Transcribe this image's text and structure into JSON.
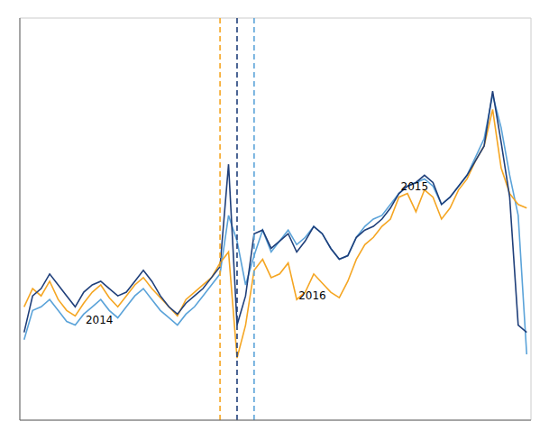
{
  "chart_data": {
    "type": "line",
    "x": [
      0,
      1,
      2,
      3,
      4,
      5,
      6,
      7,
      8,
      9,
      10,
      11,
      12,
      13,
      14,
      15,
      16,
      17,
      18,
      19,
      20,
      21,
      22,
      23,
      24,
      25,
      26,
      27,
      28,
      29,
      30,
      31,
      32,
      33,
      34,
      35,
      36,
      37,
      38,
      39,
      40,
      41,
      42,
      43,
      44,
      45,
      46,
      47,
      48,
      49,
      50,
      51,
      52,
      53,
      54,
      55,
      56,
      57,
      58,
      59
    ],
    "series": [
      {
        "color": "#1f3f7a",
        "values": [
          48,
          68,
          72,
          80,
          74,
          68,
          62,
          70,
          74,
          76,
          72,
          68,
          70,
          76,
          82,
          76,
          68,
          62,
          58,
          64,
          68,
          72,
          78,
          84,
          140,
          52,
          68,
          102,
          104,
          94,
          98,
          102,
          92,
          98,
          106,
          102,
          94,
          88,
          90,
          100,
          104,
          106,
          110,
          116,
          124,
          128,
          130,
          134,
          130,
          118,
          122,
          128,
          134,
          142,
          150,
          180,
          152,
          122,
          52,
          48
        ]
      },
      {
        "color": "#f5a623",
        "values": [
          62,
          72,
          68,
          76,
          66,
          60,
          57,
          64,
          70,
          74,
          67,
          62,
          68,
          74,
          78,
          72,
          67,
          62,
          57,
          66,
          70,
          74,
          78,
          86,
          92,
          34,
          52,
          82,
          88,
          78,
          80,
          86,
          66,
          70,
          80,
          75,
          70,
          67,
          76,
          88,
          96,
          100,
          106,
          110,
          122,
          124,
          114,
          126,
          122,
          110,
          116,
          126,
          132,
          142,
          150,
          170,
          138,
          124,
          118,
          116
        ]
      },
      {
        "color": "#5ba3d9",
        "values": [
          44,
          60,
          62,
          66,
          60,
          54,
          52,
          58,
          62,
          66,
          60,
          56,
          62,
          68,
          72,
          66,
          60,
          56,
          52,
          58,
          62,
          68,
          74,
          80,
          112,
          98,
          74,
          90,
          104,
          92,
          98,
          104,
          96,
          100,
          106,
          102,
          94,
          88,
          90,
          100,
          106,
          110,
          112,
          118,
          124,
          128,
          130,
          132,
          128,
          118,
          122,
          128,
          134,
          144,
          154,
          178,
          160,
          134,
          112,
          36
        ]
      }
    ],
    "xlim": [
      -0.5,
      59.5
    ],
    "xticks": [
      0,
      2,
      4,
      6,
      8,
      10,
      12,
      14,
      16,
      18,
      20,
      22,
      24,
      26,
      28,
      30,
      32,
      34,
      36,
      38,
      40,
      42,
      44,
      46,
      48,
      50,
      52,
      54,
      56,
      58
    ],
    "ylim": [
      0,
      220
    ],
    "yticks": [
      0,
      20,
      40,
      60,
      80,
      100,
      120,
      140,
      160,
      180,
      200,
      220
    ],
    "grid": true,
    "tick_labels": false,
    "vlines": [
      {
        "x": 23,
        "color": "#f5a623",
        "line_style": "dashed"
      },
      {
        "x": 25,
        "color": "#1f3f7a",
        "line_style": "dashed"
      },
      {
        "x": 27,
        "color": "#5ba3d9",
        "line_style": "dashed"
      }
    ],
    "annotations": [
      {
        "text": "2014",
        "x": 7,
        "y": 55
      },
      {
        "text": "2015",
        "x": 44,
        "y": 128
      },
      {
        "text": "2016",
        "x": 32,
        "y": 68
      }
    ]
  }
}
